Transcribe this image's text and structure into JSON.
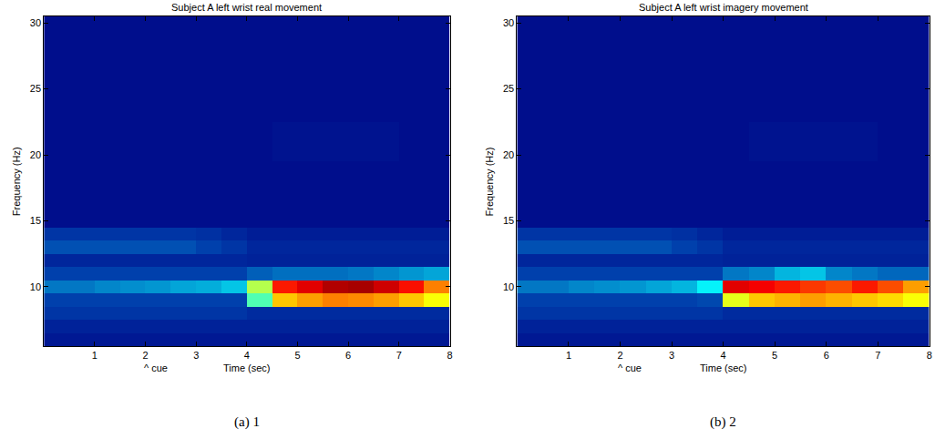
{
  "chart_data": [
    {
      "type": "heatmap",
      "title": "Subject A left wrist real movement",
      "caption": "(a) 1",
      "xlabel": "Time (sec)",
      "ylabel": "Frequency (Hz)",
      "annotation": {
        "text": "^ cue",
        "x": 2
      },
      "color": "Jet",
      "zlim": [
        0,
        100
      ],
      "xlim": [
        0,
        8
      ],
      "ylim": [
        5.5,
        30.5
      ],
      "xticks": [
        1,
        2,
        3,
        4,
        5,
        6,
        7,
        8
      ],
      "yticks": [
        10,
        15,
        20,
        25,
        30
      ],
      "x": [
        0.25,
        0.75,
        1.25,
        1.75,
        2.25,
        2.75,
        3.25,
        3.75,
        4.25,
        4.75,
        5.25,
        5.75,
        6.25,
        6.75,
        7.25,
        7.75
      ],
      "y": [
        6,
        7,
        8,
        9,
        10,
        11,
        12,
        13,
        14,
        15,
        16,
        17,
        18,
        19,
        20,
        21,
        22,
        23,
        24,
        25,
        26,
        27,
        28,
        29,
        30
      ],
      "z": [
        [
          5,
          5,
          5,
          5,
          5,
          5,
          5,
          5,
          5,
          5,
          5,
          5,
          5,
          5,
          5,
          5
        ],
        [
          7,
          7,
          7,
          7,
          7,
          7,
          7,
          7,
          7,
          7,
          7,
          7,
          7,
          7,
          7,
          7
        ],
        [
          11,
          11,
          11,
          11,
          11,
          11,
          11,
          11,
          9,
          9,
          9,
          9,
          9,
          9,
          9,
          9
        ],
        [
          13,
          13,
          13,
          13,
          13,
          13,
          13,
          13,
          45,
          68,
          72,
          75,
          74,
          72,
          68,
          62
        ],
        [
          20,
          20,
          22,
          23,
          24,
          26,
          27,
          30,
          55,
          85,
          90,
          95,
          96,
          92,
          86,
          75
        ],
        [
          13,
          13,
          13,
          13,
          13,
          13,
          13,
          13,
          17,
          19,
          19,
          19,
          20,
          22,
          24,
          26
        ],
        [
          8,
          8,
          8,
          8,
          8,
          8,
          8,
          8,
          7,
          7,
          7,
          7,
          7,
          7,
          7,
          7
        ],
        [
          15,
          15,
          15,
          15,
          15,
          15,
          13,
          11,
          8,
          8,
          8,
          8,
          8,
          8,
          8,
          8
        ],
        [
          11,
          11,
          11,
          11,
          11,
          11,
          10,
          8,
          6,
          6,
          6,
          6,
          6,
          6,
          6,
          6
        ],
        [
          3,
          3,
          3,
          3,
          3,
          3,
          3,
          3,
          3,
          3,
          3,
          3,
          3,
          3,
          3,
          3
        ],
        [
          3,
          3,
          3,
          3,
          3,
          3,
          3,
          3,
          3,
          3,
          3,
          3,
          3,
          3,
          3,
          3
        ],
        [
          3,
          3,
          3,
          3,
          3,
          3,
          3,
          3,
          3,
          3,
          3,
          3,
          3,
          3,
          3,
          3
        ],
        [
          3,
          3,
          3,
          3,
          3,
          3,
          3,
          3,
          3,
          3,
          3,
          3,
          3,
          3,
          3,
          3
        ],
        [
          3,
          3,
          3,
          3,
          3,
          3,
          3,
          3,
          3,
          3,
          3,
          3,
          3,
          3,
          3,
          3
        ],
        [
          3,
          3,
          3,
          3,
          3,
          3,
          3,
          3,
          3,
          4,
          4,
          4,
          4,
          4,
          3,
          3
        ],
        [
          3,
          3,
          3,
          3,
          3,
          3,
          3,
          3,
          3,
          4,
          4,
          4,
          4,
          4,
          3,
          3
        ],
        [
          3,
          3,
          3,
          3,
          3,
          3,
          3,
          3,
          3,
          4,
          4,
          4,
          4,
          4,
          3,
          3
        ],
        [
          3,
          3,
          3,
          3,
          3,
          3,
          3,
          3,
          3,
          3,
          3,
          3,
          3,
          3,
          3,
          3
        ],
        [
          3,
          3,
          3,
          3,
          3,
          3,
          3,
          3,
          3,
          3,
          3,
          3,
          3,
          3,
          3,
          3
        ],
        [
          3,
          3,
          3,
          3,
          3,
          3,
          3,
          3,
          3,
          3,
          3,
          3,
          3,
          3,
          3,
          3
        ],
        [
          3,
          3,
          3,
          3,
          3,
          3,
          3,
          3,
          3,
          3,
          3,
          3,
          3,
          3,
          3,
          3
        ],
        [
          3,
          3,
          3,
          3,
          3,
          3,
          3,
          3,
          3,
          3,
          3,
          3,
          3,
          3,
          3,
          3
        ],
        [
          3,
          3,
          3,
          3,
          3,
          3,
          3,
          3,
          3,
          3,
          3,
          3,
          3,
          3,
          3,
          3
        ],
        [
          3,
          3,
          3,
          3,
          3,
          3,
          3,
          3,
          3,
          3,
          3,
          3,
          3,
          3,
          3,
          3
        ],
        [
          3,
          3,
          3,
          3,
          3,
          3,
          3,
          3,
          3,
          3,
          3,
          3,
          3,
          3,
          3,
          3
        ]
      ]
    },
    {
      "type": "heatmap",
      "title": "Subject A left wrist imagery movement",
      "caption": "(b) 2",
      "xlabel": "Time (sec)",
      "ylabel": "Frequency (Hz)",
      "annotation": {
        "text": "^ cue",
        "x": 2
      },
      "color": "Jet",
      "zlim": [
        0,
        100
      ],
      "xlim": [
        0,
        8
      ],
      "ylim": [
        5.5,
        30.5
      ],
      "xticks": [
        1,
        2,
        3,
        4,
        5,
        6,
        7,
        8
      ],
      "yticks": [
        10,
        15,
        20,
        25,
        30
      ],
      "x": [
        0.25,
        0.75,
        1.25,
        1.75,
        2.25,
        2.75,
        3.25,
        3.75,
        4.25,
        4.75,
        5.25,
        5.75,
        6.25,
        6.75,
        7.25,
        7.75
      ],
      "y": [
        6,
        7,
        8,
        9,
        10,
        11,
        12,
        13,
        14,
        15,
        16,
        17,
        18,
        19,
        20,
        21,
        22,
        23,
        24,
        25,
        26,
        27,
        28,
        29,
        30
      ],
      "z": [
        [
          5,
          5,
          5,
          5,
          5,
          5,
          5,
          5,
          5,
          5,
          5,
          5,
          5,
          5,
          5,
          5
        ],
        [
          7,
          7,
          7,
          7,
          7,
          7,
          7,
          7,
          7,
          7,
          7,
          7,
          7,
          7,
          7,
          7
        ],
        [
          11,
          11,
          11,
          11,
          11,
          11,
          11,
          11,
          9,
          9,
          9,
          9,
          9,
          9,
          9,
          9
        ],
        [
          13,
          13,
          13,
          13,
          13,
          13,
          13,
          14,
          60,
          68,
          70,
          72,
          70,
          68,
          66,
          62
        ],
        [
          20,
          20,
          22,
          23,
          24,
          26,
          28,
          36,
          90,
          88,
          85,
          82,
          80,
          85,
          80,
          72
        ],
        [
          13,
          13,
          13,
          13,
          13,
          13,
          13,
          13,
          20,
          22,
          28,
          30,
          22,
          20,
          18,
          18
        ],
        [
          8,
          8,
          8,
          8,
          8,
          8,
          8,
          8,
          7,
          7,
          7,
          7,
          7,
          7,
          7,
          7
        ],
        [
          15,
          15,
          15,
          15,
          15,
          15,
          13,
          11,
          8,
          8,
          8,
          8,
          8,
          8,
          8,
          8
        ],
        [
          11,
          11,
          11,
          11,
          11,
          11,
          10,
          8,
          6,
          6,
          6,
          6,
          6,
          6,
          6,
          6
        ],
        [
          3,
          3,
          3,
          3,
          3,
          3,
          3,
          3,
          3,
          3,
          3,
          3,
          3,
          3,
          3,
          3
        ],
        [
          3,
          3,
          3,
          3,
          3,
          3,
          3,
          3,
          3,
          3,
          3,
          3,
          3,
          3,
          3,
          3
        ],
        [
          3,
          3,
          3,
          3,
          3,
          3,
          3,
          3,
          3,
          3,
          3,
          3,
          3,
          3,
          3,
          3
        ],
        [
          3,
          3,
          3,
          3,
          3,
          3,
          3,
          3,
          3,
          3,
          3,
          3,
          3,
          3,
          3,
          3
        ],
        [
          3,
          3,
          3,
          3,
          3,
          3,
          3,
          3,
          3,
          3,
          3,
          3,
          3,
          3,
          3,
          3
        ],
        [
          3,
          3,
          3,
          3,
          3,
          3,
          3,
          3,
          3,
          4,
          4,
          4,
          4,
          4,
          3,
          3
        ],
        [
          3,
          3,
          3,
          3,
          3,
          3,
          3,
          3,
          3,
          4,
          4,
          4,
          4,
          4,
          3,
          3
        ],
        [
          3,
          3,
          3,
          3,
          3,
          3,
          3,
          3,
          3,
          4,
          4,
          4,
          4,
          4,
          3,
          3
        ],
        [
          3,
          3,
          3,
          3,
          3,
          3,
          3,
          3,
          3,
          3,
          3,
          3,
          3,
          3,
          3,
          3
        ],
        [
          3,
          3,
          3,
          3,
          3,
          3,
          3,
          3,
          3,
          3,
          3,
          3,
          3,
          3,
          3,
          3
        ],
        [
          3,
          3,
          3,
          3,
          3,
          3,
          3,
          3,
          3,
          3,
          3,
          3,
          3,
          3,
          3,
          3
        ],
        [
          3,
          3,
          3,
          3,
          3,
          3,
          3,
          3,
          3,
          3,
          3,
          3,
          3,
          3,
          3,
          3
        ],
        [
          3,
          3,
          3,
          3,
          3,
          3,
          3,
          3,
          3,
          3,
          3,
          3,
          3,
          3,
          3,
          3
        ],
        [
          3,
          3,
          3,
          3,
          3,
          3,
          3,
          3,
          3,
          3,
          3,
          3,
          3,
          3,
          3,
          3
        ],
        [
          3,
          3,
          3,
          3,
          3,
          3,
          3,
          3,
          3,
          3,
          3,
          3,
          3,
          3,
          3,
          3
        ],
        [
          3,
          3,
          3,
          3,
          3,
          3,
          3,
          3,
          3,
          3,
          3,
          3,
          3,
          3,
          3,
          3
        ]
      ]
    }
  ]
}
